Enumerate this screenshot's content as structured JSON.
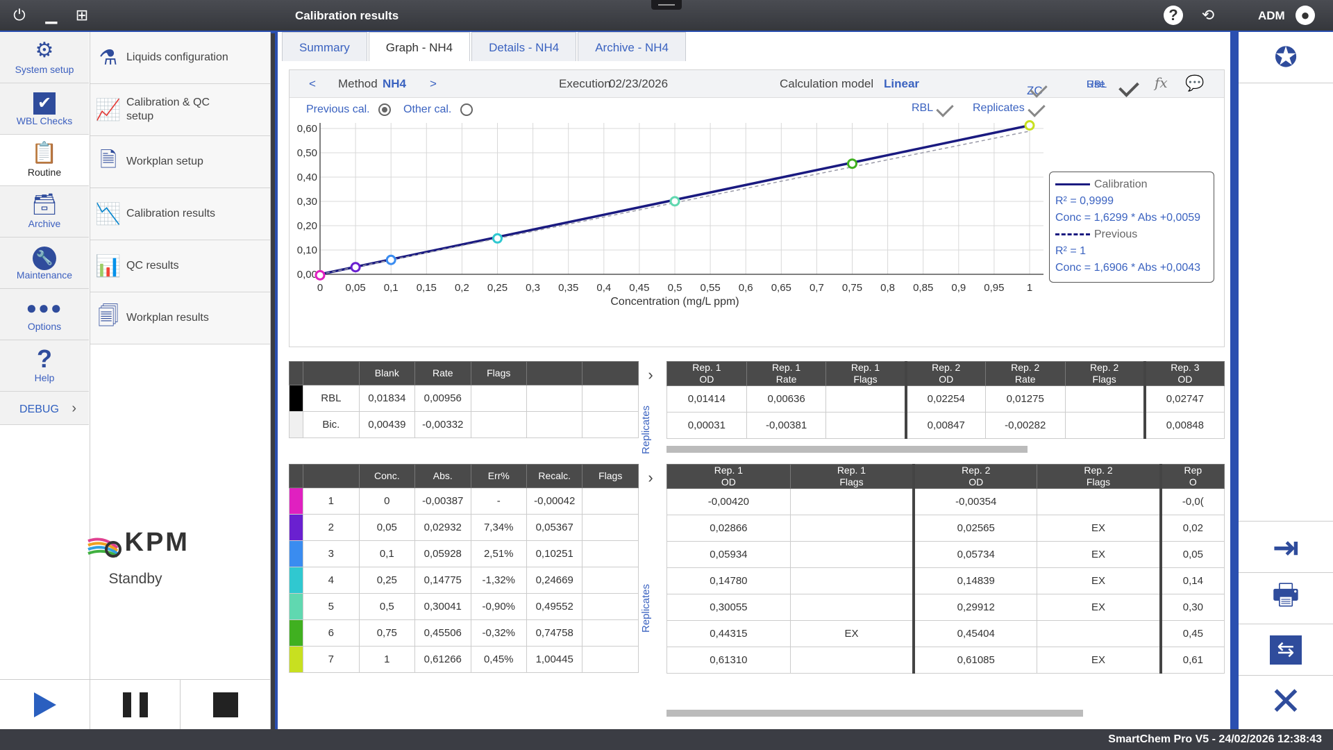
{
  "window": {
    "title": "Calibration results",
    "user": "ADM"
  },
  "leftnav": [
    {
      "label": "System setup",
      "icon": "gear-icon"
    },
    {
      "label": "WBL Checks",
      "icon": "checkbox-icon"
    },
    {
      "label": "Routine",
      "icon": "clipboard-icon"
    },
    {
      "label": "Archive",
      "icon": "archive-box-icon"
    },
    {
      "label": "Maintenance",
      "icon": "wrench-icon"
    },
    {
      "label": "Options",
      "icon": "dots-icon"
    },
    {
      "label": "Help",
      "icon": "question-icon"
    }
  ],
  "debug_label": "DEBUG",
  "submenu": [
    {
      "label": "Liquids configuration",
      "icon": "flask-gear-icon"
    },
    {
      "label": "Calibration & QC setup",
      "icon": "chart-gear-icon"
    },
    {
      "label": "Workplan setup",
      "icon": "document-gear-icon"
    },
    {
      "label": "Calibration results",
      "icon": "calibration-chart-icon"
    },
    {
      "label": "QC results",
      "icon": "qc-chart-icon"
    },
    {
      "label": "Workplan results",
      "icon": "document-eye-icon"
    }
  ],
  "brand": {
    "name": "KPM",
    "status": "Standby"
  },
  "tabs": [
    "Summary",
    "Graph - NH4",
    "Details - NH4",
    "Archive - NH4"
  ],
  "method_bar": {
    "prev": "<",
    "next": ">",
    "method_label": "Method",
    "method_value": "NH4",
    "execution_label": "Execution",
    "execution_value": "02/23/2026",
    "calc_label": "Calculation model",
    "calc_value": "Linear",
    "zc_label": "ZC",
    "use_rbl_label_1": "Use",
    "use_rbl_label_2": "RBL",
    "fx_label": "fx"
  },
  "options_bar": {
    "previous_cal": "Previous cal.",
    "other_cal": "Other cal.",
    "rbl": "RBL",
    "replicates": "Replicates"
  },
  "chart_data": {
    "type": "line",
    "xlabel": "Concentration (mg/L ppm)",
    "xlim": [
      0,
      1
    ],
    "ylim": [
      0,
      0.6
    ],
    "x_ticks": [
      "0",
      "0,05",
      "0,1",
      "0,15",
      "0,2",
      "0,25",
      "0,3",
      "0,35",
      "0,4",
      "0,45",
      "0,5",
      "0,55",
      "0,6",
      "0,65",
      "0,7",
      "0,75",
      "0,8",
      "0,85",
      "0,9",
      "0,95",
      "1"
    ],
    "y_ticks": [
      "0,00",
      "0,10",
      "0,20",
      "0,30",
      "0,40",
      "0,50",
      "0,60"
    ],
    "grid": true,
    "series": [
      {
        "name": "Calibration",
        "x": [
          0,
          1
        ],
        "y": [
          0.0,
          0.6127
        ],
        "style": "solid",
        "color": "#1a1a80"
      },
      {
        "name": "Previous",
        "x": [
          0,
          1
        ],
        "y": [
          0.0,
          0.589
        ],
        "style": "dashed",
        "color": "#9a9aa8"
      }
    ],
    "points": [
      {
        "x": 0,
        "y": -0.0039,
        "color": "#e020c0"
      },
      {
        "x": 0.05,
        "y": 0.0293,
        "color": "#6a20d0"
      },
      {
        "x": 0.1,
        "y": 0.0593,
        "color": "#3a8cf0"
      },
      {
        "x": 0.25,
        "y": 0.1478,
        "color": "#30c8d0"
      },
      {
        "x": 0.5,
        "y": 0.3004,
        "color": "#60d8b0"
      },
      {
        "x": 0.75,
        "y": 0.4551,
        "color": "#40b020"
      },
      {
        "x": 1,
        "y": 0.6127,
        "color": "#c8e020"
      }
    ],
    "legend": {
      "calibration_label": "Calibration",
      "calibration_r2": "R² = 0,9999",
      "calibration_eq": "Conc = 1,6299 * Abs +0,0059",
      "previous_label": "Previous",
      "previous_r2": "R² = 1",
      "previous_eq": "Conc = 1,6906 * Abs +0,0043"
    }
  },
  "blank_table": {
    "headers": [
      "",
      "Blank",
      "Rate",
      "Flags",
      "",
      ""
    ],
    "rows": [
      {
        "color": "#000000",
        "name": "RBL",
        "blank": "0,01834",
        "rate": "0,00956"
      },
      {
        "color": "#f0f0f0",
        "name": "Bic.",
        "blank": "0,00439",
        "rate": "-0,00332"
      }
    ]
  },
  "blank_rep_table": {
    "headers": [
      [
        "Rep. 1",
        "OD"
      ],
      [
        "Rep. 1",
        "Rate"
      ],
      [
        "Rep. 1",
        "Flags"
      ],
      [
        "Rep. 2",
        "OD"
      ],
      [
        "Rep. 2",
        "Rate"
      ],
      [
        "Rep. 2",
        "Flags"
      ],
      [
        "Rep. 3",
        "OD"
      ]
    ],
    "rows": [
      [
        "0,01414",
        "0,00636",
        "",
        "0,02254",
        "0,01275",
        "",
        "0,02747"
      ],
      [
        "0,00031",
        "-0,00381",
        "",
        "0,00847",
        "-0,00282",
        "",
        "0,00848"
      ]
    ]
  },
  "std_table": {
    "headers": [
      "",
      "Conc.",
      "Abs.",
      "Err%",
      "Recalc.",
      "Flags"
    ],
    "rows": [
      {
        "color": "#e020c0",
        "id": "1",
        "conc": "0",
        "abs": "-0,00387",
        "err": "-",
        "recalc": "-0,00042"
      },
      {
        "color": "#6a20d0",
        "id": "2",
        "conc": "0,05",
        "abs": "0,02932",
        "err": "7,34%",
        "recalc": "0,05367"
      },
      {
        "color": "#3a8cf0",
        "id": "3",
        "conc": "0,1",
        "abs": "0,05928",
        "err": "2,51%",
        "recalc": "0,10251"
      },
      {
        "color": "#30c8d0",
        "id": "4",
        "conc": "0,25",
        "abs": "0,14775",
        "err": "-1,32%",
        "recalc": "0,24669"
      },
      {
        "color": "#60d8b0",
        "id": "5",
        "conc": "0,5",
        "abs": "0,30041",
        "err": "-0,90%",
        "recalc": "0,49552"
      },
      {
        "color": "#40b020",
        "id": "6",
        "conc": "0,75",
        "abs": "0,45506",
        "err": "-0,32%",
        "recalc": "0,74758"
      },
      {
        "color": "#c8e020",
        "id": "7",
        "conc": "1",
        "abs": "0,61266",
        "err": "0,45%",
        "recalc": "1,00445"
      }
    ]
  },
  "std_rep_table": {
    "headers": [
      [
        "Rep. 1",
        "OD"
      ],
      [
        "Rep. 1",
        "Flags"
      ],
      [
        "Rep. 2",
        "OD"
      ],
      [
        "Rep. 2",
        "Flags"
      ],
      [
        "Rep",
        "O"
      ]
    ],
    "rows": [
      [
        "-0,00420",
        "",
        "-0,00354",
        "",
        "-0,0("
      ],
      [
        "0,02866",
        "",
        "0,02565",
        "EX",
        "0,02"
      ],
      [
        "0,05934",
        "",
        "0,05734",
        "EX",
        "0,05"
      ],
      [
        "0,14780",
        "",
        "0,14839",
        "EX",
        "0,14"
      ],
      [
        "0,30055",
        "",
        "0,29912",
        "EX",
        "0,30"
      ],
      [
        "0,44315",
        "EX",
        "0,45404",
        "",
        "0,45"
      ],
      [
        "0,61310",
        "",
        "0,61085",
        "EX",
        "0,61"
      ]
    ]
  },
  "replicates_label": "Replicates",
  "status": "SmartChem Pro V5  -  24/02/2026 12:38:43"
}
